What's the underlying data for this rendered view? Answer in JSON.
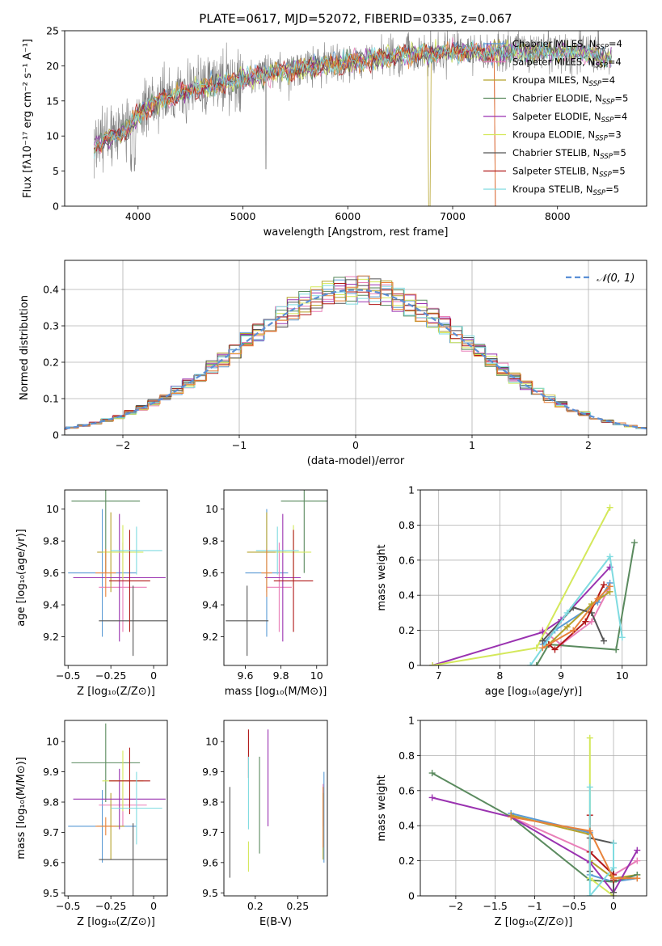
{
  "figure_title": "PLATE=0617, MJD=52072, FIBERID=0335, z=0.067",
  "colors": {
    "chabrier_miles": "#5b9bd5",
    "salpeter_miles": "#e97fb8",
    "kroupa_miles": "#b5a22a",
    "chabrier_elodie": "#5a8a5e",
    "salpeter_elodie": "#9a32b0",
    "kroupa_elodie": "#d4e85a",
    "chabrier_stelib": "#555555",
    "salpeter_stelib": "#b01818",
    "kroupa_stelib": "#7fdbe0",
    "orange": "#e8823a",
    "data": "#808080",
    "gauss": "#5b8fd6"
  },
  "chart_data": [
    {
      "id": "spectrum",
      "type": "line",
      "xlabel": "wavelength [Angstrom, rest frame]",
      "ylabel": "Flux [fλ10⁻¹⁷ erg cm⁻² s⁻¹ A⁻¹]",
      "xlim": [
        3300,
        8850
      ],
      "ylim": [
        0,
        25
      ],
      "xticks": [
        4000,
        5000,
        6000,
        7000,
        8000
      ],
      "yticks": [
        0,
        5,
        10,
        15,
        20,
        25
      ],
      "legend_position": "right",
      "legend": [
        {
          "label": "Chabrier MILES, N",
          "sub": "SSP",
          "tail": "=4",
          "color": "chabrier_miles"
        },
        {
          "label": "Salpeter MILES, N",
          "sub": "SSP",
          "tail": "=4",
          "color": "salpeter_miles"
        },
        {
          "label": "Kroupa MILES, N",
          "sub": "SSP",
          "tail": "=4",
          "color": "kroupa_miles"
        },
        {
          "label": "Chabrier ELODIE, N",
          "sub": "SSP",
          "tail": "=5",
          "color": "chabrier_elodie"
        },
        {
          "label": "Salpeter ELODIE, N",
          "sub": "SSP",
          "tail": "=4",
          "color": "salpeter_elodie"
        },
        {
          "label": "Kroupa ELODIE, N",
          "sub": "SSP",
          "tail": "=3",
          "color": "kroupa_elodie"
        },
        {
          "label": "Chabrier STELIB, N",
          "sub": "SSP",
          "tail": "=5",
          "color": "chabrier_stelib"
        },
        {
          "label": "Salpeter STELIB, N",
          "sub": "SSP",
          "tail": "=5",
          "color": "salpeter_stelib"
        },
        {
          "label": "Kroupa STELIB, N",
          "sub": "SSP",
          "tail": "=5",
          "color": "kroupa_stelib"
        }
      ],
      "continuum": [
        [
          3580,
          8.5
        ],
        [
          3700,
          9.5
        ],
        [
          3900,
          11
        ],
        [
          4000,
          13
        ],
        [
          4200,
          15
        ],
        [
          4500,
          16.5
        ],
        [
          4800,
          17.5
        ],
        [
          5100,
          18.5
        ],
        [
          5500,
          19.5
        ],
        [
          6000,
          20.5
        ],
        [
          6500,
          21.5
        ],
        [
          7000,
          22
        ],
        [
          7400,
          22
        ],
        [
          7800,
          22
        ],
        [
          8200,
          22
        ],
        [
          8500,
          21
        ]
      ]
    },
    {
      "id": "residuals",
      "type": "line",
      "xlabel": "(data-model)/error",
      "ylabel": "Normed distribution",
      "xlim": [
        -2.5,
        2.5
      ],
      "ylim": [
        0,
        0.48
      ],
      "xticks": [
        -2,
        -1,
        0,
        1,
        2
      ],
      "yticks": [
        0.0,
        0.1,
        0.2,
        0.3,
        0.4
      ],
      "grid": true,
      "legend_position": "top-right",
      "gauss_label": "𝒩(0, 1)"
    },
    {
      "id": "age_vs_Z",
      "type": "scatter",
      "xlabel": "Z [log₁₀(Z/Z⊙)]",
      "ylabel": "age  [log₁₀(age/yr)]",
      "xlim": [
        -0.52,
        0.08
      ],
      "ylim": [
        9.02,
        10.12
      ],
      "xticks": [
        -0.5,
        -0.25,
        0.0
      ],
      "yticks": [
        9.2,
        9.4,
        9.6,
        9.8,
        10.0
      ],
      "points": [
        {
          "color": "chabrier_miles",
          "x": -0.3,
          "xerr": 0.2,
          "y": 9.6,
          "yerr": 0.4
        },
        {
          "color": "salpeter_miles",
          "x": -0.18,
          "xerr": 0.14,
          "y": 9.51,
          "yerr": 0.28
        },
        {
          "color": "kroupa_miles",
          "x": -0.25,
          "xerr": 0.08,
          "y": 9.73,
          "yerr": 0.25
        },
        {
          "color": "chabrier_elodie",
          "x": -0.28,
          "xerr": 0.2,
          "y": 10.05,
          "yerr": 0.45
        },
        {
          "color": "salpeter_elodie",
          "x": -0.2,
          "xerr": 0.27,
          "y": 9.57,
          "yerr": 0.4
        },
        {
          "color": "kroupa_elodie",
          "x": -0.18,
          "xerr": 0.12,
          "y": 9.73,
          "yerr": 0.17
        },
        {
          "color": "chabrier_stelib",
          "x": -0.12,
          "xerr": 0.2,
          "y": 9.3,
          "yerr": 0.22
        },
        {
          "color": "salpeter_stelib",
          "x": -0.14,
          "xerr": 0.12,
          "y": 9.55,
          "yerr": 0.32
        },
        {
          "color": "kroupa_stelib",
          "x": -0.1,
          "xerr": 0.15,
          "y": 9.74,
          "yerr": 0.15
        },
        {
          "color": "orange",
          "x": -0.28,
          "xerr": 0.06,
          "y": 9.6,
          "yerr": 0.15
        }
      ]
    },
    {
      "id": "age_vs_mass",
      "type": "scatter",
      "xlabel": "mass [log₁₀(M/M⊙)]",
      "xlim": [
        9.48,
        10.06
      ],
      "ylim": [
        9.02,
        10.12
      ],
      "xticks": [
        9.6,
        9.8,
        10.0
      ],
      "yticks": [
        9.2,
        9.4,
        9.6,
        9.8,
        10.0
      ],
      "points": [
        {
          "color": "chabrier_miles",
          "x": 9.72,
          "xerr": 0.12,
          "y": 9.6,
          "yerr": 0.4
        },
        {
          "color": "salpeter_miles",
          "x": 9.79,
          "xerr": 0.07,
          "y": 9.51,
          "yerr": 0.28
        },
        {
          "color": "kroupa_miles",
          "x": 9.72,
          "xerr": 0.11,
          "y": 9.73,
          "yerr": 0.25
        },
        {
          "color": "chabrier_elodie",
          "x": 9.93,
          "xerr": 0.13,
          "y": 10.05,
          "yerr": 0.45
        },
        {
          "color": "salpeter_elodie",
          "x": 9.81,
          "xerr": 0.1,
          "y": 9.57,
          "yerr": 0.4
        },
        {
          "color": "kroupa_elodie",
          "x": 9.87,
          "xerr": 0.1,
          "y": 9.73,
          "yerr": 0.17
        },
        {
          "color": "chabrier_stelib",
          "x": 9.61,
          "xerr": 0.12,
          "y": 9.3,
          "yerr": 0.22
        },
        {
          "color": "salpeter_stelib",
          "x": 9.87,
          "xerr": 0.11,
          "y": 9.55,
          "yerr": 0.32
        },
        {
          "color": "kroupa_stelib",
          "x": 9.78,
          "xerr": 0.12,
          "y": 9.74,
          "yerr": 0.15
        },
        {
          "color": "orange",
          "x": 9.72,
          "xerr": 0.03,
          "y": 9.6,
          "yerr": 0.15
        }
      ]
    },
    {
      "id": "weights_vs_age",
      "type": "line",
      "xlabel": "age  [log₁₀(age/yr)]",
      "ylabel": "mass weight",
      "xlim": [
        6.7,
        10.4
      ],
      "ylim": [
        0,
        1.0
      ],
      "xticks": [
        7,
        8,
        9,
        10
      ],
      "yticks": [
        0.0,
        0.2,
        0.4,
        0.6,
        0.8,
        1.0
      ],
      "grid": true,
      "series": [
        {
          "color": "chabrier_miles",
          "x": [
            8.7,
            8.9,
            9.6,
            9.8
          ],
          "y": [
            0.12,
            0.2,
            0.36,
            0.47
          ]
        },
        {
          "color": "salpeter_miles",
          "x": [
            8.7,
            9.0,
            9.5,
            9.8
          ],
          "y": [
            0.2,
            0.12,
            0.25,
            0.45
          ]
        },
        {
          "color": "kroupa_miles",
          "x": [
            8.8,
            9.1,
            9.5,
            9.8
          ],
          "y": [
            0.12,
            0.22,
            0.35,
            0.42
          ]
        },
        {
          "color": "chabrier_elodie",
          "x": [
            8.6,
            8.8,
            9.9,
            10.2
          ],
          "y": [
            0.0,
            0.12,
            0.09,
            0.7
          ]
        },
        {
          "color": "salpeter_elodie",
          "x": [
            6.9,
            8.7,
            9.0,
            9.8
          ],
          "y": [
            0.0,
            0.19,
            0.26,
            0.56
          ]
        },
        {
          "color": "kroupa_elodie",
          "x": [
            6.9,
            8.6,
            9.8
          ],
          "y": [
            0.0,
            0.1,
            0.9
          ]
        },
        {
          "color": "chabrier_stelib",
          "x": [
            8.7,
            9.2,
            9.5,
            9.7
          ],
          "y": [
            0.14,
            0.33,
            0.3,
            0.14
          ]
        },
        {
          "color": "salpeter_stelib",
          "x": [
            8.8,
            8.9,
            9.4,
            9.7
          ],
          "y": [
            0.12,
            0.09,
            0.25,
            0.46
          ]
        },
        {
          "color": "kroupa_stelib",
          "x": [
            8.5,
            9.1,
            9.8,
            10.0
          ],
          "y": [
            0.0,
            0.3,
            0.62,
            0.16
          ]
        },
        {
          "color": "orange",
          "x": [
            8.7,
            9.2,
            9.6,
            9.8
          ],
          "y": [
            0.1,
            0.2,
            0.38,
            0.45
          ]
        }
      ]
    },
    {
      "id": "mass_vs_Z",
      "type": "scatter",
      "xlabel": "Z [log₁₀(Z/Z⊙)]",
      "ylabel": "mass [log₁₀(M/M⊙)]",
      "xlim": [
        -0.52,
        0.08
      ],
      "ylim": [
        9.49,
        10.07
      ],
      "xticks": [
        -0.5,
        -0.25,
        0.0
      ],
      "yticks": [
        9.5,
        9.6,
        9.7,
        9.8,
        9.9,
        10.0
      ],
      "points": [
        {
          "color": "chabrier_miles",
          "x": -0.3,
          "xerr": 0.2,
          "y": 9.72,
          "yerr": 0.12
        },
        {
          "color": "salpeter_miles",
          "x": -0.18,
          "xerr": 0.14,
          "y": 9.79,
          "yerr": 0.07
        },
        {
          "color": "kroupa_miles",
          "x": -0.25,
          "xerr": 0.08,
          "y": 9.72,
          "yerr": 0.11
        },
        {
          "color": "chabrier_elodie",
          "x": -0.28,
          "xerr": 0.2,
          "y": 9.93,
          "yerr": 0.13
        },
        {
          "color": "salpeter_elodie",
          "x": -0.2,
          "xerr": 0.27,
          "y": 9.81,
          "yerr": 0.1
        },
        {
          "color": "kroupa_elodie",
          "x": -0.18,
          "xerr": 0.12,
          "y": 9.87,
          "yerr": 0.1
        },
        {
          "color": "chabrier_stelib",
          "x": -0.12,
          "xerr": 0.2,
          "y": 9.61,
          "yerr": 0.12
        },
        {
          "color": "salpeter_stelib",
          "x": -0.14,
          "xerr": 0.12,
          "y": 9.87,
          "yerr": 0.11
        },
        {
          "color": "kroupa_stelib",
          "x": -0.1,
          "xerr": 0.15,
          "y": 9.78,
          "yerr": 0.12
        },
        {
          "color": "orange",
          "x": -0.28,
          "xerr": 0.06,
          "y": 9.72,
          "yerr": 0.03
        }
      ]
    },
    {
      "id": "mass_vs_ebv",
      "type": "scatter",
      "xlabel": "E(B-V)",
      "xlim": [
        0.163,
        0.285
      ],
      "ylim": [
        9.49,
        10.07
      ],
      "xticks": [
        0.2,
        0.25
      ],
      "yticks": [
        9.5,
        9.6,
        9.7,
        9.8,
        9.9,
        10.0
      ],
      "points": [
        {
          "color": "chabrier_miles",
          "x": 0.281,
          "y": 9.75,
          "yerr": 0.15
        },
        {
          "color": "salpeter_miles",
          "x": 0.28,
          "y": 9.79,
          "yerr": 0.07
        },
        {
          "color": "kroupa_miles",
          "x": 0.28,
          "y": 9.72,
          "yerr": 0.11
        },
        {
          "color": "chabrier_elodie",
          "x": 0.205,
          "y": 9.79,
          "yerr": 0.16
        },
        {
          "color": "salpeter_elodie",
          "x": 0.215,
          "y": 9.88,
          "yerr": 0.16
        },
        {
          "color": "kroupa_elodie",
          "x": 0.192,
          "y": 9.62,
          "yerr": 0.05
        },
        {
          "color": "chabrier_stelib",
          "x": 0.17,
          "y": 9.7,
          "yerr": 0.15
        },
        {
          "color": "salpeter_stelib",
          "x": 0.192,
          "y": 9.96,
          "yerr": 0.08
        },
        {
          "color": "kroupa_stelib",
          "x": 0.192,
          "y": 9.83,
          "yerr": 0.12
        },
        {
          "color": "orange",
          "x": 0.28,
          "y": 9.75,
          "yerr": 0.1
        }
      ]
    },
    {
      "id": "weights_vs_Z",
      "type": "line",
      "xlabel": "Z [log₁₀(Z/Z⊙)]",
      "ylabel": "mass weight",
      "xlim": [
        -2.45,
        0.42
      ],
      "ylim": [
        0,
        1.0
      ],
      "xticks": [
        -2.0,
        -1.5,
        -1.0,
        -0.5,
        0.0
      ],
      "yticks": [
        0.0,
        0.2,
        0.4,
        0.6,
        0.8,
        1.0
      ],
      "grid": true,
      "series": [
        {
          "color": "chabrier_miles",
          "x": [
            -1.3,
            -0.3,
            -0.3,
            0.0,
            0.3
          ],
          "y": [
            0.47,
            0.36,
            0.12,
            0.08,
            0.1
          ]
        },
        {
          "color": "salpeter_miles",
          "x": [
            -1.3,
            -0.3,
            0.0,
            0.3
          ],
          "y": [
            0.45,
            0.25,
            0.12,
            0.2
          ]
        },
        {
          "color": "kroupa_miles",
          "x": [
            -1.3,
            -0.3,
            -0.3,
            0.0,
            0.3
          ],
          "y": [
            0.46,
            0.35,
            0.2,
            0.1,
            0.12
          ]
        },
        {
          "color": "chabrier_elodie",
          "x": [
            -2.3,
            -1.3,
            -0.3,
            0.0,
            0.3
          ],
          "y": [
            0.7,
            0.45,
            0.09,
            0.08,
            0.12
          ]
        },
        {
          "color": "salpeter_elodie",
          "x": [
            -2.3,
            -1.3,
            -0.3,
            0.0,
            0.3
          ],
          "y": [
            0.56,
            0.45,
            0.19,
            0.02,
            0.26
          ]
        },
        {
          "color": "kroupa_elodie",
          "x": [
            -0.3,
            -0.3,
            0.0
          ],
          "y": [
            0.9,
            0.1,
            0.0
          ]
        },
        {
          "color": "chabrier_stelib",
          "x": [
            -0.3,
            -0.3,
            0.0,
            0.0
          ],
          "y": [
            0.14,
            0.33,
            0.3,
            0.02
          ]
        },
        {
          "color": "salpeter_stelib",
          "x": [
            -0.3,
            -0.3,
            0.0,
            0.0
          ],
          "y": [
            0.46,
            0.25,
            0.12,
            0.09
          ]
        },
        {
          "color": "kroupa_stelib",
          "x": [
            -0.3,
            -0.3,
            0.0,
            0.0
          ],
          "y": [
            0.62,
            0.0,
            0.16,
            0.3
          ]
        },
        {
          "color": "orange",
          "x": [
            -1.3,
            -0.3,
            0.0,
            0.3
          ],
          "y": [
            0.45,
            0.37,
            0.1,
            0.1
          ]
        }
      ]
    }
  ]
}
